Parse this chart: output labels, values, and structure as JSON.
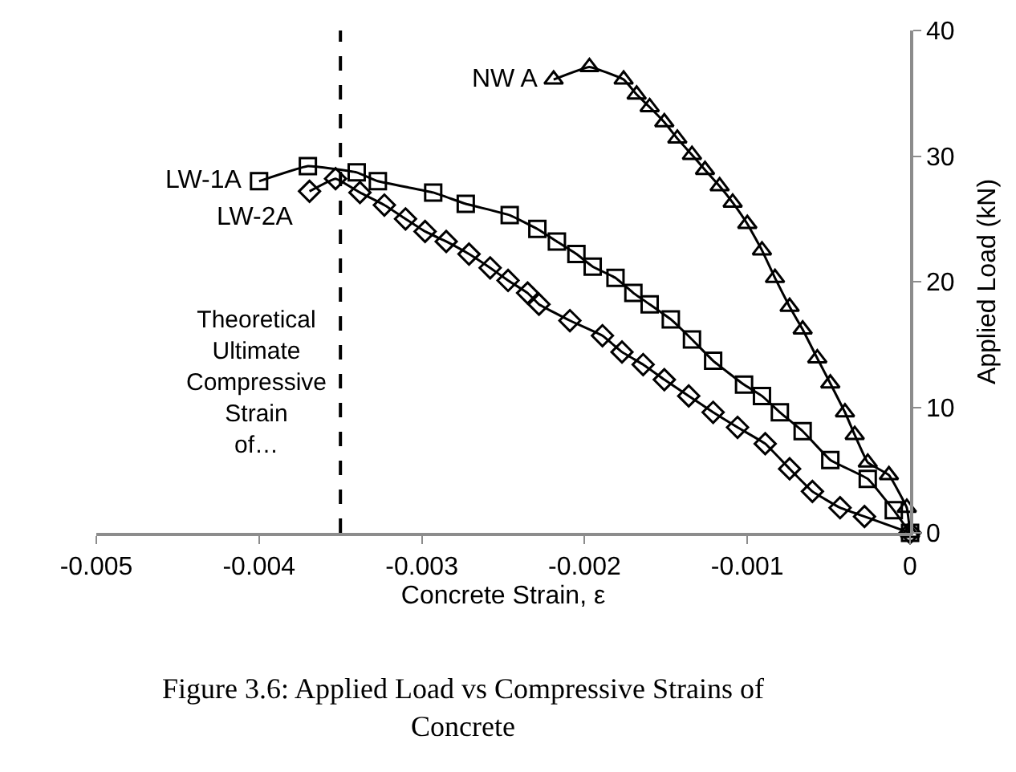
{
  "chart_data": {
    "type": "line",
    "xlabel": "Concrete Strain, ε",
    "ylabel": "Applied Load (kN)",
    "xlim": [
      -0.005,
      0
    ],
    "xticks": [
      -0.005,
      -0.004,
      -0.003,
      -0.002,
      -0.001,
      0
    ],
    "ylim": [
      0,
      40
    ],
    "yticks": [
      0,
      10,
      20,
      30,
      40
    ],
    "series": [
      {
        "name": "LW-1A",
        "color": "#000000",
        "marker": "square",
        "x": [
          -0.004,
          -0.0037,
          -0.0034,
          -0.00327,
          -0.00293,
          -0.00273,
          -0.00246,
          -0.00229,
          -0.00217,
          -0.00205,
          -0.00195,
          -0.00181,
          -0.0017,
          -0.0016,
          -0.00147,
          -0.00134,
          -0.00121,
          -0.00102,
          -0.00091,
          -0.0008,
          -0.00066,
          -0.00049,
          -0.00026,
          -0.0001,
          0
        ],
        "values": [
          28,
          29.2,
          28.7,
          28,
          27.1,
          26.2,
          25.3,
          24.2,
          23.2,
          22.2,
          21.2,
          20.3,
          19.1,
          18.2,
          17,
          15.4,
          13.7,
          11.8,
          10.9,
          9.6,
          8.1,
          5.8,
          4.3,
          1.8,
          0
        ]
      },
      {
        "name": "LW-2A",
        "color": "#000000",
        "marker": "diamond",
        "x": [
          -0.00369,
          -0.00353,
          -0.00338,
          -0.00323,
          -0.0031,
          -0.00298,
          -0.00285,
          -0.00271,
          -0.00258,
          -0.00247,
          -0.00235,
          -0.00228,
          -0.00209,
          -0.00189,
          -0.00177,
          -0.00164,
          -0.00151,
          -0.00136,
          -0.00121,
          -0.00106,
          -0.00089,
          -0.00074,
          -0.0006,
          -0.00043,
          -0.00028,
          0
        ],
        "values": [
          27.2,
          28.2,
          27.1,
          26.1,
          25,
          24,
          23.2,
          22.2,
          21.1,
          20.1,
          19.1,
          18.2,
          16.9,
          15.7,
          14.4,
          13.4,
          12.2,
          10.9,
          9.6,
          8.4,
          7.1,
          5.1,
          3.3,
          2,
          1.3,
          0
        ]
      },
      {
        "name": "NW A",
        "color": "#000000",
        "marker": "triangle",
        "x": [
          -0.00219,
          -0.00197,
          -0.00176,
          -0.00168,
          -0.0016,
          -0.00151,
          -0.00143,
          -0.00134,
          -0.00126,
          -0.00117,
          -0.00109,
          -0.001,
          -0.00091,
          -0.00083,
          -0.00074,
          -0.00066,
          -0.00057,
          -0.00049,
          -0.0004,
          -0.00034,
          -0.00026,
          -0.00013,
          -2e-05,
          0
        ],
        "values": [
          36.1,
          37.1,
          36.1,
          34.9,
          33.9,
          32.7,
          31.4,
          30.1,
          28.9,
          27.6,
          26.3,
          24.6,
          22.5,
          20.3,
          18,
          16.2,
          13.9,
          11.9,
          9.6,
          7.8,
          5.6,
          4.6,
          2,
          0
        ]
      }
    ],
    "ref_lines": [
      {
        "axis": "x",
        "value": -0.0035,
        "label": "Theoretical Ultimate Compressive Strain of…",
        "color": "#000000",
        "line_style": "dashed"
      }
    ],
    "annotations": [
      "Figure 3.6: Applied Load vs Compressive Strains of Concrete"
    ]
  }
}
